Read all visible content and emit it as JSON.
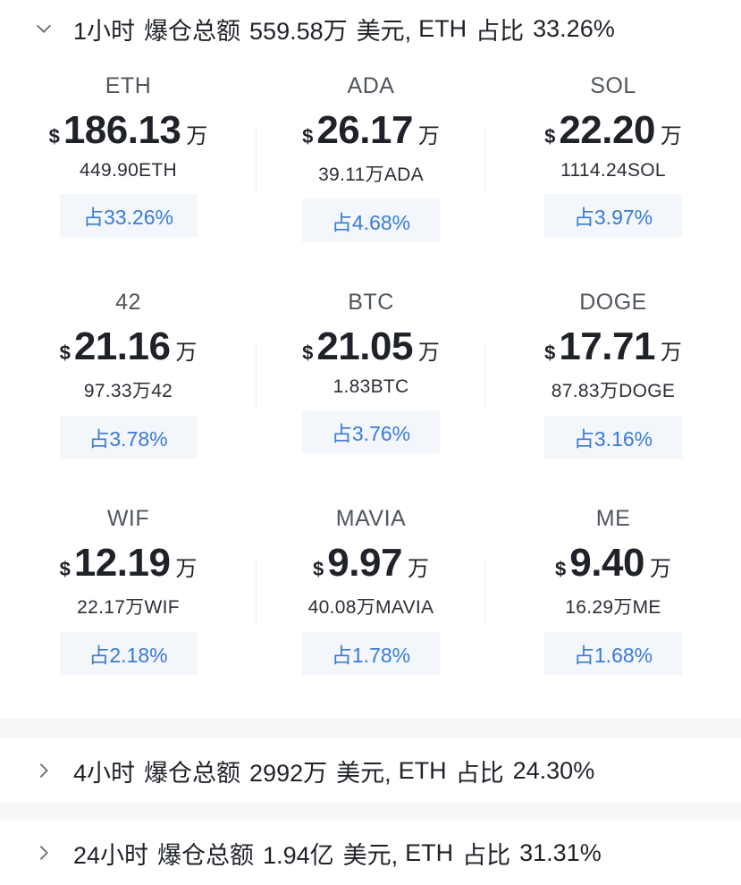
{
  "sections": [
    {
      "expanded": true,
      "period": "1小时",
      "label": "爆仓总额",
      "total": "559.58万",
      "currency": "美元,",
      "top_coin": "ETH",
      "ratio_label": "占比",
      "ratio": "33.26%"
    },
    {
      "expanded": false,
      "period": "4小时",
      "label": "爆仓总额",
      "total": "2992万",
      "currency": "美元,",
      "top_coin": "ETH",
      "ratio_label": "占比",
      "ratio": "24.30%"
    },
    {
      "expanded": false,
      "period": "24小时",
      "label": "爆仓总额",
      "total": "1.94亿",
      "currency": "美元,",
      "top_coin": "ETH",
      "ratio_label": "占比",
      "ratio": "31.31%"
    }
  ],
  "coins": [
    {
      "name": "ETH",
      "dollar": "$",
      "amount": "186.13",
      "unit": "万",
      "qty": "449.90ETH",
      "share": "占33.26%"
    },
    {
      "name": "ADA",
      "dollar": "$",
      "amount": "26.17",
      "unit": "万",
      "qty": "39.11万ADA",
      "share": "占4.68%"
    },
    {
      "name": "SOL",
      "dollar": "$",
      "amount": "22.20",
      "unit": "万",
      "qty": "1114.24SOL",
      "share": "占3.97%"
    },
    {
      "name": "42",
      "dollar": "$",
      "amount": "21.16",
      "unit": "万",
      "qty": "97.33万42",
      "share": "占3.78%"
    },
    {
      "name": "BTC",
      "dollar": "$",
      "amount": "21.05",
      "unit": "万",
      "qty": "1.83BTC",
      "share": "占3.76%"
    },
    {
      "name": "DOGE",
      "dollar": "$",
      "amount": "17.71",
      "unit": "万",
      "qty": "87.83万DOGE",
      "share": "占3.16%"
    },
    {
      "name": "WIF",
      "dollar": "$",
      "amount": "12.19",
      "unit": "万",
      "qty": "22.17万WIF",
      "share": "占2.18%"
    },
    {
      "name": "MAVIA",
      "dollar": "$",
      "amount": "9.97",
      "unit": "万",
      "qty": "40.08万MAVIA",
      "share": "占1.78%"
    },
    {
      "name": "ME",
      "dollar": "$",
      "amount": "9.40",
      "unit": "万",
      "qty": "16.29万ME",
      "share": "占1.68%"
    }
  ],
  "icons": {
    "expanded": "chevron-down-icon",
    "collapsed": "chevron-right-icon"
  },
  "colors": {
    "accent": "#3a7bd5",
    "share_bg": "#f3f6fa",
    "separator": "#f6f7f9"
  }
}
